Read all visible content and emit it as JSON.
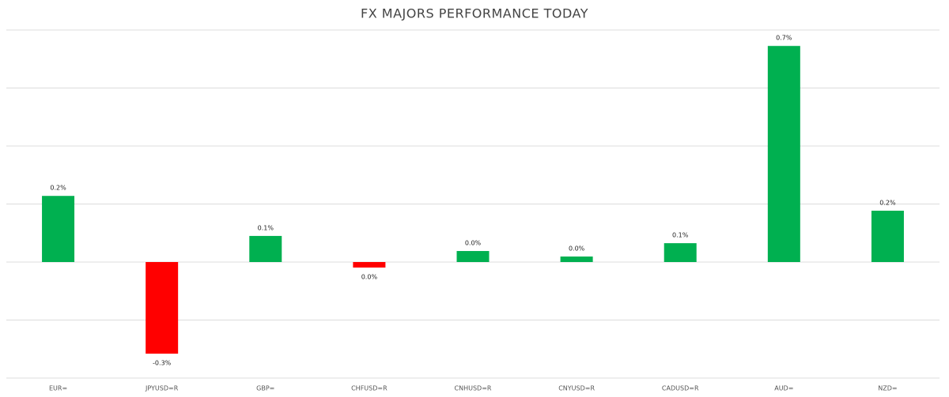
{
  "chart_data": {
    "type": "bar",
    "title": "FX MAJORS PERFORMANCE TODAY",
    "categories": [
      "EUR=",
      "JPYUSD=R",
      "GBP=",
      "CHFUSD=R",
      "CNHUSD=R",
      "CNYUSD=R",
      "CADUSD=R",
      "AUD=",
      "NZD="
    ],
    "values": [
      0.228,
      -0.316,
      0.09,
      -0.019,
      0.038,
      0.019,
      0.065,
      0.745,
      0.177
    ],
    "value_labels": [
      "0.2%",
      "-0.3%",
      "0.1%",
      "0.0%",
      "0.0%",
      "0.0%",
      "0.1%",
      "0.7%",
      "0.2%"
    ],
    "positive_color": "#00b050",
    "negative_color": "#ff0000",
    "ylim": [
      -0.4,
      0.8
    ],
    "yticks": [
      -0.4,
      -0.2,
      0,
      0.2,
      0.4,
      0.6,
      0.8
    ],
    "grid": true
  }
}
